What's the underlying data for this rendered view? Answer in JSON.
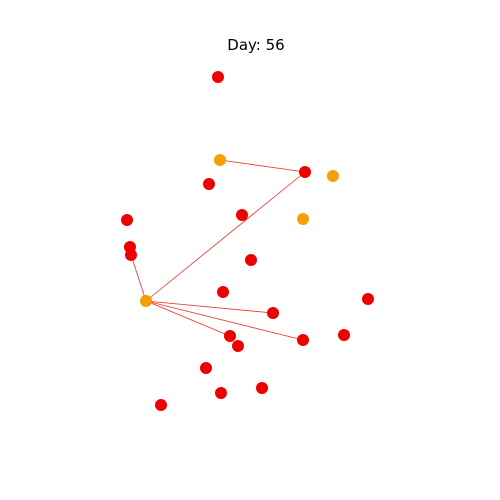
{
  "title": "Day: 56",
  "colors": {
    "infected": "#ee0000",
    "exposed": "#f5a000",
    "edge": "#e8322a",
    "background": "#ffffff"
  },
  "nodes": [
    {
      "id": "n1",
      "state": "infected"
    },
    {
      "id": "n2",
      "state": "exposed"
    },
    {
      "id": "n3",
      "state": "infected"
    },
    {
      "id": "n4",
      "state": "exposed"
    },
    {
      "id": "n5",
      "state": "infected"
    },
    {
      "id": "n6",
      "state": "infected"
    },
    {
      "id": "n7",
      "state": "exposed"
    },
    {
      "id": "n8",
      "state": "infected"
    },
    {
      "id": "n9",
      "state": "infected"
    },
    {
      "id": "n10",
      "state": "infected"
    },
    {
      "id": "n11",
      "state": "infected"
    },
    {
      "id": "n12",
      "state": "exposed"
    },
    {
      "id": "n13",
      "state": "infected"
    },
    {
      "id": "n14",
      "state": "infected"
    },
    {
      "id": "n15",
      "state": "infected"
    },
    {
      "id": "n16",
      "state": "infected"
    },
    {
      "id": "n17",
      "state": "infected"
    },
    {
      "id": "n18",
      "state": "infected"
    },
    {
      "id": "n19",
      "state": "infected"
    },
    {
      "id": "n20",
      "state": "infected"
    },
    {
      "id": "n21",
      "state": "infected"
    },
    {
      "id": "n22",
      "state": "infected"
    },
    {
      "id": "n23",
      "state": "infected"
    }
  ],
  "edges": [
    {
      "source": "n2",
      "target": "n3"
    },
    {
      "source": "n3",
      "target": "n12"
    },
    {
      "source": "n10",
      "target": "n12"
    },
    {
      "source": "n12",
      "target": "n15"
    },
    {
      "source": "n12",
      "target": "n16"
    },
    {
      "source": "n12",
      "target": "n18"
    }
  ]
}
